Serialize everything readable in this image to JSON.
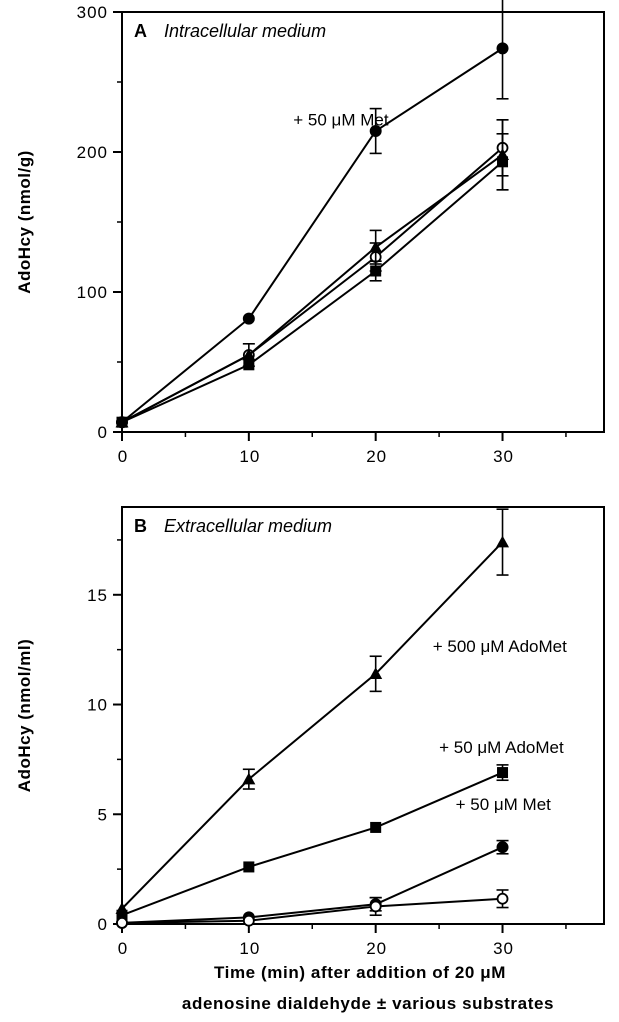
{
  "figure": {
    "xlabel_line1": "Time (min) after addition of 20 μM",
    "xlabel_line2": "adenosine dialdehyde ± various substrates"
  },
  "chart_data": [
    {
      "type": "line",
      "panel": "A",
      "title": "Intracellular medium",
      "ylabel": "AdoHcy (nmol/g)",
      "xlabel": "Time (min) after addition of 20 μM adenosine dialdehyde ± various substrates",
      "xlim": [
        0,
        38
      ],
      "ylim": [
        0,
        300
      ],
      "xticks": [
        0,
        10,
        20,
        30
      ],
      "xtick_labels": [
        "0",
        "10",
        "20",
        "30"
      ],
      "yticks": [
        0,
        100,
        200,
        300
      ],
      "ytick_labels": [
        "0",
        "100",
        "200",
        "300"
      ],
      "x": [
        0,
        10,
        20,
        30
      ],
      "series": [
        {
          "name": "+ 50 μM Met",
          "marker": "filled-circle",
          "values": [
            7,
            81,
            215,
            274
          ],
          "errors": [
            0,
            0,
            16,
            36
          ]
        },
        {
          "marker": "open-circle",
          "values": [
            7,
            55,
            125,
            203
          ],
          "errors": [
            0,
            0,
            10,
            20
          ]
        },
        {
          "marker": "filled-triangle",
          "values": [
            7,
            55,
            132,
            198
          ],
          "errors": [
            0,
            8,
            12,
            25
          ]
        },
        {
          "marker": "filled-square",
          "values": [
            7,
            48,
            115,
            193
          ],
          "errors": [
            0,
            0,
            7,
            20
          ]
        }
      ],
      "annotations": [
        {
          "text": "+ 50 μM Met",
          "x": 13.5,
          "y": 219
        }
      ]
    },
    {
      "type": "line",
      "panel": "B",
      "title": "Extracellular medium",
      "ylabel": "AdoHcy (nmol/ml)",
      "xlabel": "Time (min) after addition of 20 μM adenosine dialdehyde ± various substrates",
      "xlim": [
        0,
        38
      ],
      "ylim": [
        0,
        19
      ],
      "xticks": [
        0,
        10,
        20,
        30
      ],
      "xtick_labels": [
        "0",
        "10",
        "20",
        "30"
      ],
      "yticks": [
        0,
        5,
        10,
        15
      ],
      "ytick_labels": [
        "0",
        "5",
        "10",
        "15"
      ],
      "x": [
        0,
        10,
        20,
        30
      ],
      "series": [
        {
          "name": "+ 500 μM AdoMet",
          "marker": "filled-triangle",
          "values": [
            0.7,
            6.6,
            11.4,
            17.4
          ],
          "errors": [
            0,
            0.45,
            0.8,
            1.5
          ]
        },
        {
          "name": "+ 50 μM AdoMet",
          "marker": "filled-square",
          "values": [
            0.4,
            2.6,
            4.4,
            6.9
          ],
          "errors": [
            0,
            0,
            0,
            0.35
          ]
        },
        {
          "name": "+ 50 μM Met",
          "marker": "filled-circle",
          "values": [
            0.05,
            0.3,
            0.9,
            3.5
          ],
          "errors": [
            0,
            0,
            0.3,
            0.3
          ]
        },
        {
          "marker": "open-circle",
          "values": [
            0.05,
            0.15,
            0.8,
            1.15
          ],
          "errors": [
            0,
            0,
            0.4,
            0.4
          ]
        }
      ],
      "annotations": [
        {
          "text": "+ 500 μM AdoMet",
          "x": 24.5,
          "y": 12.4
        },
        {
          "text": "+ 50 μM AdoMet",
          "x": 25.0,
          "y": 7.8
        },
        {
          "text": "+ 50 μM Met",
          "x": 26.3,
          "y": 5.2
        }
      ]
    }
  ]
}
